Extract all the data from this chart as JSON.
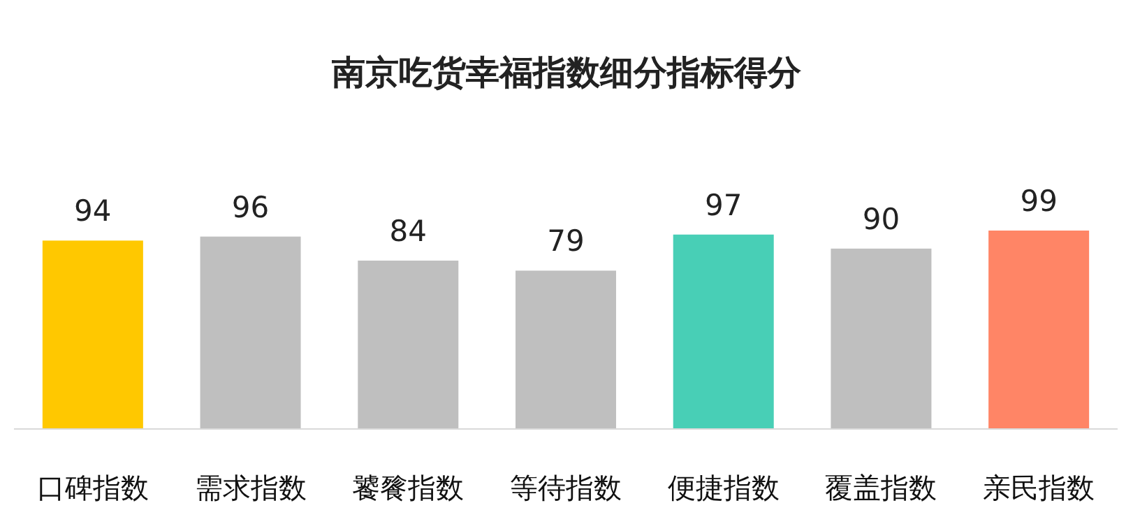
{
  "chart_data": {
    "type": "bar",
    "title": "南京吃货幸福指数细分指标得分",
    "categories": [
      "口碑指数",
      "需求指数",
      "饕餮指数",
      "等待指数",
      "便捷指数",
      "覆盖指数",
      "亲民指数"
    ],
    "values": [
      94,
      96,
      84,
      79,
      97,
      90,
      99
    ],
    "colors": [
      "#ffc800",
      "#bfbfbf",
      "#bfbfbf",
      "#bfbfbf",
      "#48cfb6",
      "#bfbfbf",
      "#ff8566"
    ],
    "data_labels": true
  }
}
